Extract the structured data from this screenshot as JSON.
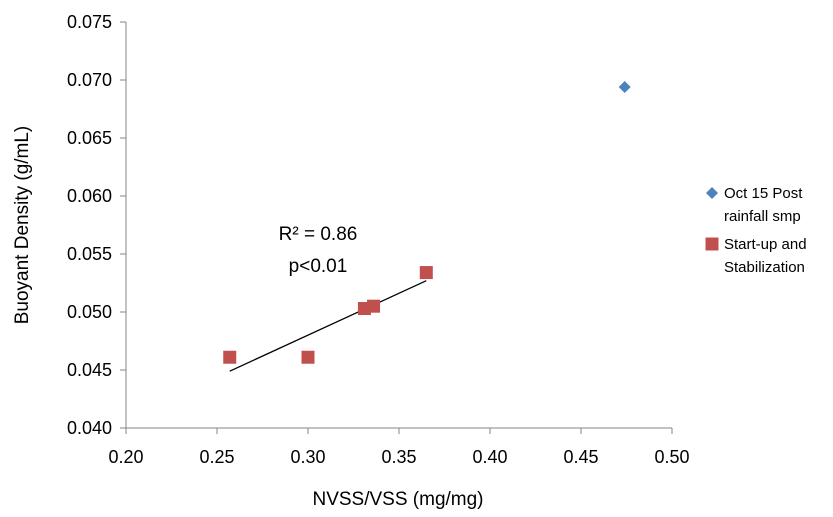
{
  "chart_data": {
    "type": "scatter",
    "title": "",
    "xlabel": "NVSS/VSS (mg/mg)",
    "ylabel": "Buoyant Density (g/mL)",
    "xlim": [
      0.2,
      0.5
    ],
    "ylim": [
      0.04,
      0.075
    ],
    "x_ticks": [
      "0.20",
      "0.25",
      "0.30",
      "0.35",
      "0.40",
      "0.45",
      "0.50"
    ],
    "y_ticks": [
      "0.040",
      "0.045",
      "0.050",
      "0.055",
      "0.060",
      "0.065",
      "0.070",
      "0.075"
    ],
    "grid": false,
    "legend_position": "right",
    "series": [
      {
        "name": "Oct 15 Post rainfall smp",
        "legend_lines": [
          "Oct 15 Post",
          "rainfall smp"
        ],
        "marker": "diamond",
        "color": "#4F81BD",
        "points": [
          [
            0.474,
            0.0694
          ]
        ]
      },
      {
        "name": "Start-up and Stabilization",
        "legend_lines": [
          "Start-up and",
          "Stabilization"
        ],
        "marker": "square",
        "color": "#C0504D",
        "points": [
          [
            0.257,
            0.0461
          ],
          [
            0.3,
            0.0461
          ],
          [
            0.331,
            0.0503
          ],
          [
            0.336,
            0.0505
          ],
          [
            0.365,
            0.0534
          ]
        ]
      }
    ],
    "trendline": {
      "series": "Start-up and Stabilization",
      "x": [
        0.257,
        0.365
      ],
      "y": [
        0.0449,
        0.0527
      ],
      "color": "#000000"
    },
    "annotations": [
      "R² = 0.86",
      "p<0.01"
    ]
  }
}
